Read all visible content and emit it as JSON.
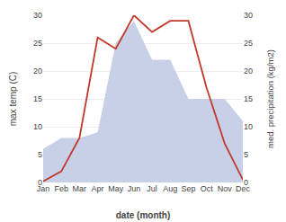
{
  "chart_data": {
    "type": "line",
    "categories": [
      "Jan",
      "Feb",
      "Mar",
      "Apr",
      "May",
      "Jun",
      "Jul",
      "Aug",
      "Sep",
      "Oct",
      "Nov",
      "Dec"
    ],
    "series": [
      {
        "type": "area",
        "color": "#c8d0e8",
        "values": [
          6,
          8,
          8,
          9,
          25,
          29,
          22,
          22,
          15,
          15,
          15,
          11
        ]
      },
      {
        "type": "line",
        "color": "#c0392b",
        "values": [
          0.2,
          2,
          8,
          26,
          24,
          30,
          27,
          29,
          29,
          17,
          7,
          0.5
        ]
      }
    ],
    "xlabel": "date (month)",
    "ylabel": "max temp (C)",
    "y2label": "med. precipitation (kg/m2)",
    "ylim": [
      0,
      30
    ],
    "yticks": [
      0,
      5,
      10,
      15,
      20,
      25,
      30
    ],
    "y2lim": [
      0,
      30
    ],
    "y2ticks": [
      0,
      5,
      10,
      15,
      20,
      25,
      30
    ],
    "grid": true
  }
}
